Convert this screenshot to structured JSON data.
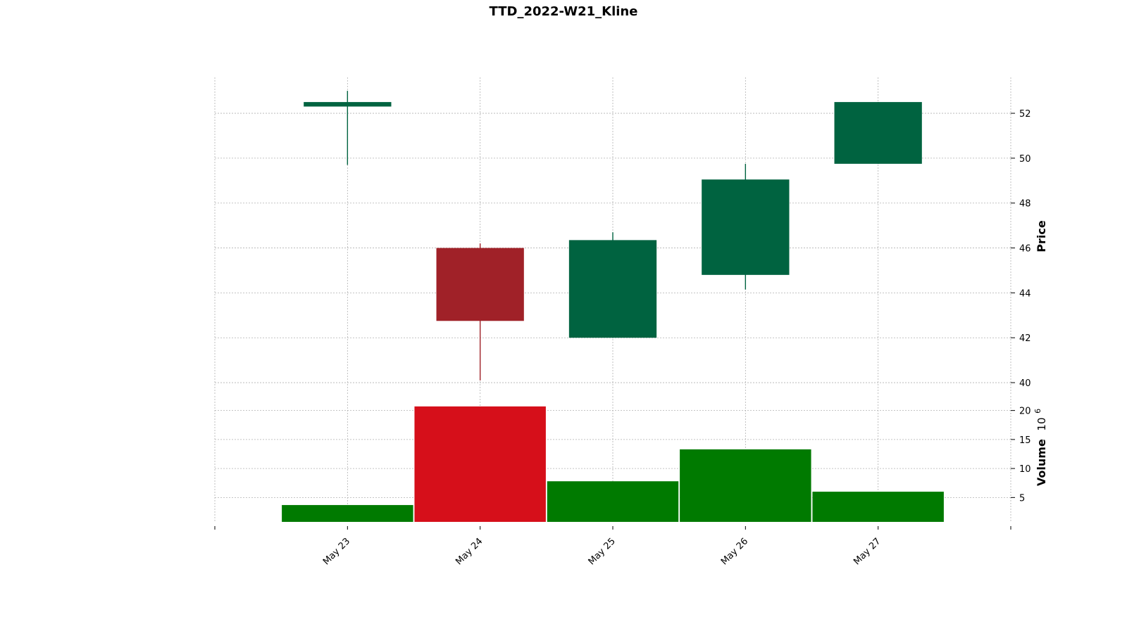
{
  "chart_data": {
    "type": "candlestick",
    "title": "TTD_2022-W21_Kline",
    "categories": [
      "May 23",
      "May 24",
      "May 25",
      "May 26",
      "May 27"
    ],
    "ohlc": [
      {
        "date": "May 23",
        "open": 52.3,
        "high": 53.0,
        "low": 49.7,
        "close": 52.5
      },
      {
        "date": "May 24",
        "open": 46.0,
        "high": 46.2,
        "low": 40.1,
        "close": 42.75
      },
      {
        "date": "May 25",
        "open": 42.0,
        "high": 46.7,
        "low": 42.0,
        "close": 46.35
      },
      {
        "date": "May 26",
        "open": 44.8,
        "high": 49.75,
        "low": 44.15,
        "close": 49.05
      },
      {
        "date": "May 27",
        "open": 49.75,
        "high": 52.5,
        "low": 49.75,
        "close": 52.5
      }
    ],
    "volume": [
      3.7,
      20.7,
      7.8,
      13.3,
      6.0
    ],
    "price_axis": {
      "label": "Price",
      "ylim": [
        39.5,
        53.6
      ],
      "ticks": [
        40,
        42,
        44,
        46,
        48,
        50,
        52
      ]
    },
    "volume_axis": {
      "label": "Volume",
      "multiplier_label": "10",
      "multiplier_exponent": "6",
      "ylim": [
        0.8,
        22.5
      ],
      "ticks": [
        5,
        10,
        15,
        20
      ]
    },
    "colors": {
      "up_candle": "#006340",
      "down_candle": "#a02128",
      "up_volume": "#007a00",
      "down_volume": "#d60f1a"
    },
    "grid": true
  }
}
